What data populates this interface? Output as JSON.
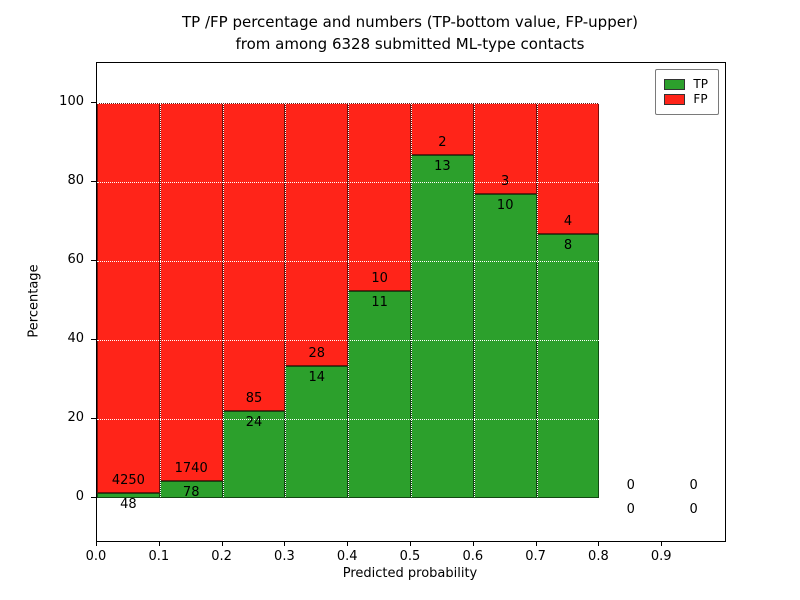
{
  "chart_data": {
    "type": "bar",
    "stacked": true,
    "normalized": "percent",
    "title_line1": "TP /FP percentage and numbers (TP-bottom value, FP-upper)",
    "title_line2": "from among 6328 submitted ML-type contacts",
    "total_contacts": 6328,
    "xlabel": "Predicted probability",
    "ylabel": "Percentage",
    "bin_start": [
      0.0,
      0.1,
      0.2,
      0.3,
      0.4,
      0.5,
      0.6,
      0.7,
      0.8,
      0.9
    ],
    "bin_width": 0.1,
    "series": [
      {
        "name": "TP",
        "color": "#2ca02c",
        "counts": [
          48,
          78,
          24,
          14,
          11,
          13,
          10,
          8,
          0,
          0
        ]
      },
      {
        "name": "FP",
        "color": "#ff2419",
        "counts": [
          4250,
          1740,
          85,
          28,
          10,
          2,
          3,
          4,
          0,
          0
        ]
      }
    ],
    "tp_percent_of_bin": [
      1.1,
      4.3,
      22.0,
      33.3,
      52.4,
      86.7,
      76.9,
      66.7,
      0,
      0
    ],
    "x_ticks": [
      "0.0",
      "0.1",
      "0.2",
      "0.3",
      "0.4",
      "0.5",
      "0.6",
      "0.7",
      "0.8",
      "0.9"
    ],
    "y_ticks": [
      0,
      20,
      40,
      60,
      80,
      100
    ],
    "xlim": [
      0.0,
      1.0
    ],
    "ylim": [
      -11,
      110
    ],
    "grid": true,
    "grid_style": "white-dotted",
    "legend_position": "upper right"
  }
}
